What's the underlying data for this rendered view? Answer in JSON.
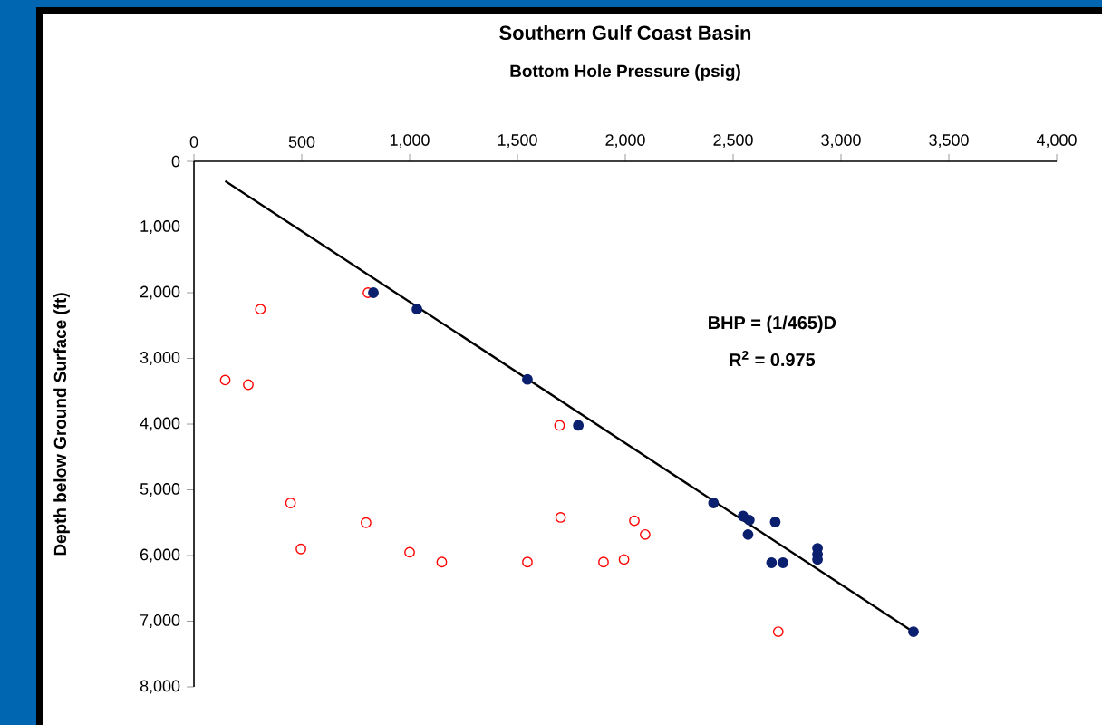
{
  "chart_data": {
    "type": "scatter",
    "title": "Southern Gulf Coast Basin",
    "xlabel": "Bottom Hole Pressure (psig)",
    "ylabel": "Depth below Ground Surface (ft)",
    "annotations": [
      "BHP = (1/465)D",
      "R$^{2}$ = 0.975"
    ],
    "xlim": [
      0,
      4000
    ],
    "xticks": [
      {
        "value": 0,
        "label": "0"
      },
      {
        "value": 500,
        "label": "500"
      },
      {
        "value": 1000,
        "label": "1,000"
      },
      {
        "value": 1500,
        "label": "1,500"
      },
      {
        "value": 2000,
        "label": "2,000"
      },
      {
        "value": 2500,
        "label": "2,500"
      },
      {
        "value": 3000,
        "label": "3,000"
      },
      {
        "value": 3500,
        "label": "3,500"
      },
      {
        "value": 4000,
        "label": "4,000"
      }
    ],
    "ylim": [
      8000,
      0
    ],
    "yticks": [
      {
        "value": 0,
        "label": "0"
      },
      {
        "value": 1000,
        "label": "1,000"
      },
      {
        "value": 2000,
        "label": "2,000"
      },
      {
        "value": 3000,
        "label": "3,000"
      },
      {
        "value": 4000,
        "label": "4,000"
      },
      {
        "value": 5000,
        "label": "5,000"
      },
      {
        "value": 6000,
        "label": "6,000"
      },
      {
        "value": 7000,
        "label": "7,000"
      },
      {
        "value": 8000,
        "label": "8,000"
      }
    ],
    "grid": false,
    "series": [
      {
        "color": "#ff0000",
        "marker": "circle",
        "x": [
          145,
          252,
          308,
          807,
          448,
          496,
          798,
          1000,
          1149,
          1546,
          1695,
          1700,
          1899,
          1994,
          2042,
          2092,
          2709
        ],
        "values": [
          3330,
          3400,
          2250,
          2000,
          5200,
          5900,
          5500,
          5950,
          6100,
          6100,
          4020,
          5420,
          6100,
          6060,
          5470,
          5680,
          7160
        ]
      },
      {
        "color": "#0a1f6e",
        "marker": "circle",
        "x": [
          832,
          1034,
          1546,
          1782,
          2409,
          2546,
          2575,
          2569,
          2695,
          2678,
          2731,
          2891,
          2891,
          2891,
          3336
        ],
        "values": [
          2000,
          2250,
          3320,
          4020,
          5200,
          5400,
          5460,
          5680,
          5490,
          6110,
          6110,
          5890,
          5980,
          6060,
          7160
        ]
      },
      {
        "type": "line",
        "color": "#000000",
        "marker": "none",
        "x": [
          145,
          3330
        ],
        "values": [
          300,
          7150
        ]
      }
    ]
  }
}
